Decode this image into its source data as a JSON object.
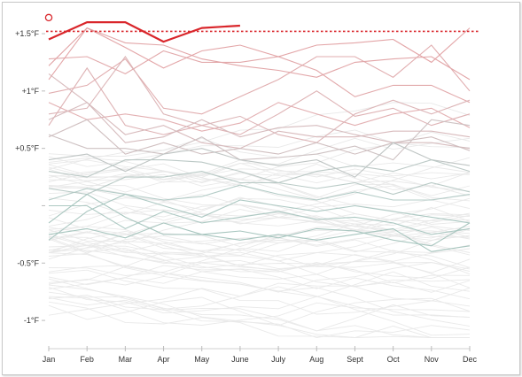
{
  "chart_data": {
    "type": "line",
    "title": "",
    "xlabel": "",
    "ylabel": "",
    "categories": [
      "Jan",
      "Feb",
      "Mar",
      "Apr",
      "May",
      "June",
      "July",
      "Aug",
      "Sept",
      "Oct",
      "Nov",
      "Dec"
    ],
    "y_tick_labels": [
      "+1.5°F",
      "+1°F",
      "+0.5°F",
      "",
      "-0.5°F",
      "-1°F"
    ],
    "y_tick_values": [
      1.5,
      1.0,
      0.5,
      0.0,
      -0.5,
      -1.0
    ],
    "ylim": [
      -1.2,
      1.67
    ],
    "grid": false,
    "legend": "none",
    "reference_line": {
      "value": 1.52,
      "style": "dotted",
      "color": "#d9262b"
    },
    "highlight_marker": {
      "month": "Jan",
      "value": 1.64,
      "shape": "circle"
    },
    "highlight_series": {
      "color": "#d9262b",
      "values": [
        1.45,
        1.6,
        1.6,
        1.43,
        1.55,
        1.57,
        null,
        null,
        null,
        null,
        null,
        null
      ]
    },
    "series": [
      {
        "values": [
          1.22,
          1.55,
          1.42,
          1.4,
          1.28,
          1.22,
          1.18,
          1.12,
          1.25,
          1.28,
          1.3,
          1.1
        ],
        "color": "#e0a0a2"
      },
      {
        "values": [
          1.28,
          1.3,
          1.15,
          1.35,
          1.25,
          1.25,
          1.3,
          1.18,
          0.95,
          1.05,
          1.05,
          0.9
        ],
        "color": "#e0a4a6"
      },
      {
        "values": [
          1.1,
          1.55,
          1.38,
          1.2,
          1.35,
          1.4,
          1.3,
          1.4,
          1.42,
          1.45,
          1.25,
          1.55
        ],
        "color": "#e2a0a2"
      },
      {
        "values": [
          0.98,
          1.05,
          1.28,
          0.85,
          0.8,
          0.95,
          1.1,
          1.3,
          1.3,
          1.12,
          1.4,
          1.0
        ],
        "color": "#dfa9ab"
      },
      {
        "values": [
          0.9,
          0.75,
          0.8,
          0.75,
          0.65,
          0.72,
          0.9,
          0.8,
          0.7,
          0.8,
          0.85,
          0.68
        ],
        "color": "#e1acae"
      },
      {
        "values": [
          0.7,
          1.2,
          0.7,
          0.62,
          0.7,
          0.62,
          0.8,
          1.0,
          0.78,
          0.85,
          0.7,
          0.8
        ],
        "color": "#dcaeb0"
      },
      {
        "values": [
          0.8,
          0.85,
          1.3,
          0.8,
          0.7,
          0.78,
          0.62,
          0.55,
          0.8,
          0.92,
          0.8,
          0.92
        ],
        "color": "#dbb2b4"
      },
      {
        "values": [
          1.15,
          0.9,
          0.62,
          0.7,
          0.55,
          0.5,
          0.65,
          0.6,
          0.6,
          0.65,
          0.65,
          0.6
        ],
        "color": "#d6b6b8"
      },
      {
        "values": [
          0.75,
          0.9,
          0.55,
          0.6,
          0.75,
          0.6,
          0.68,
          0.7,
          0.62,
          0.55,
          0.55,
          0.5
        ],
        "color": "#d4b8ba"
      },
      {
        "values": [
          0.6,
          0.75,
          0.45,
          0.55,
          0.45,
          0.5,
          0.45,
          0.55,
          0.45,
          0.55,
          0.6,
          0.48
        ],
        "color": "#cdbcbd"
      },
      {
        "values": [
          0.62,
          0.5,
          0.5,
          0.45,
          0.6,
          0.4,
          0.42,
          0.45,
          0.52,
          0.4,
          0.75,
          0.7
        ],
        "color": "#cbbfc0"
      },
      {
        "values": [
          0.4,
          0.45,
          0.3,
          0.45,
          0.5,
          0.4,
          0.35,
          0.4,
          0.25,
          0.55,
          0.4,
          0.35
        ],
        "color": "#bcc2c1"
      },
      {
        "values": [
          0.3,
          0.25,
          0.4,
          0.4,
          0.38,
          0.3,
          0.2,
          0.3,
          0.35,
          0.3,
          0.4,
          0.3
        ],
        "color": "#b8c6c3"
      },
      {
        "values": [
          0.15,
          0.1,
          0.25,
          0.25,
          0.3,
          0.2,
          0.2,
          0.15,
          0.2,
          0.1,
          0.2,
          0.12
        ],
        "color": "#b5c7c3"
      },
      {
        "values": [
          0.05,
          0.15,
          0.1,
          0.05,
          0.08,
          0.18,
          0.1,
          0.05,
          0.12,
          0.05,
          0.05,
          0.1
        ],
        "color": "#b0c9c4"
      },
      {
        "values": [
          -0.3,
          -0.05,
          0.1,
          0.0,
          -0.1,
          0.05,
          0.0,
          -0.05,
          0.0,
          -0.05,
          -0.1,
          -0.15
        ],
        "color": "#a9c6c0"
      },
      {
        "values": [
          0.0,
          0.0,
          -0.2,
          -0.05,
          -0.15,
          -0.1,
          -0.05,
          -0.12,
          -0.1,
          -0.15,
          -0.25,
          -0.2
        ],
        "color": "#a9c6c0"
      },
      {
        "values": [
          -0.15,
          0.1,
          -0.1,
          -0.25,
          -0.25,
          -0.22,
          -0.28,
          -0.2,
          -0.22,
          -0.3,
          -0.35,
          -0.15
        ],
        "color": "#a3c3bc"
      },
      {
        "values": [
          -0.25,
          -0.2,
          -0.28,
          -0.15,
          -0.25,
          -0.3,
          -0.25,
          -0.3,
          -0.25,
          -0.2,
          -0.4,
          -0.35
        ],
        "color": "#a3c3bc"
      }
    ],
    "background_series_count": 60
  }
}
